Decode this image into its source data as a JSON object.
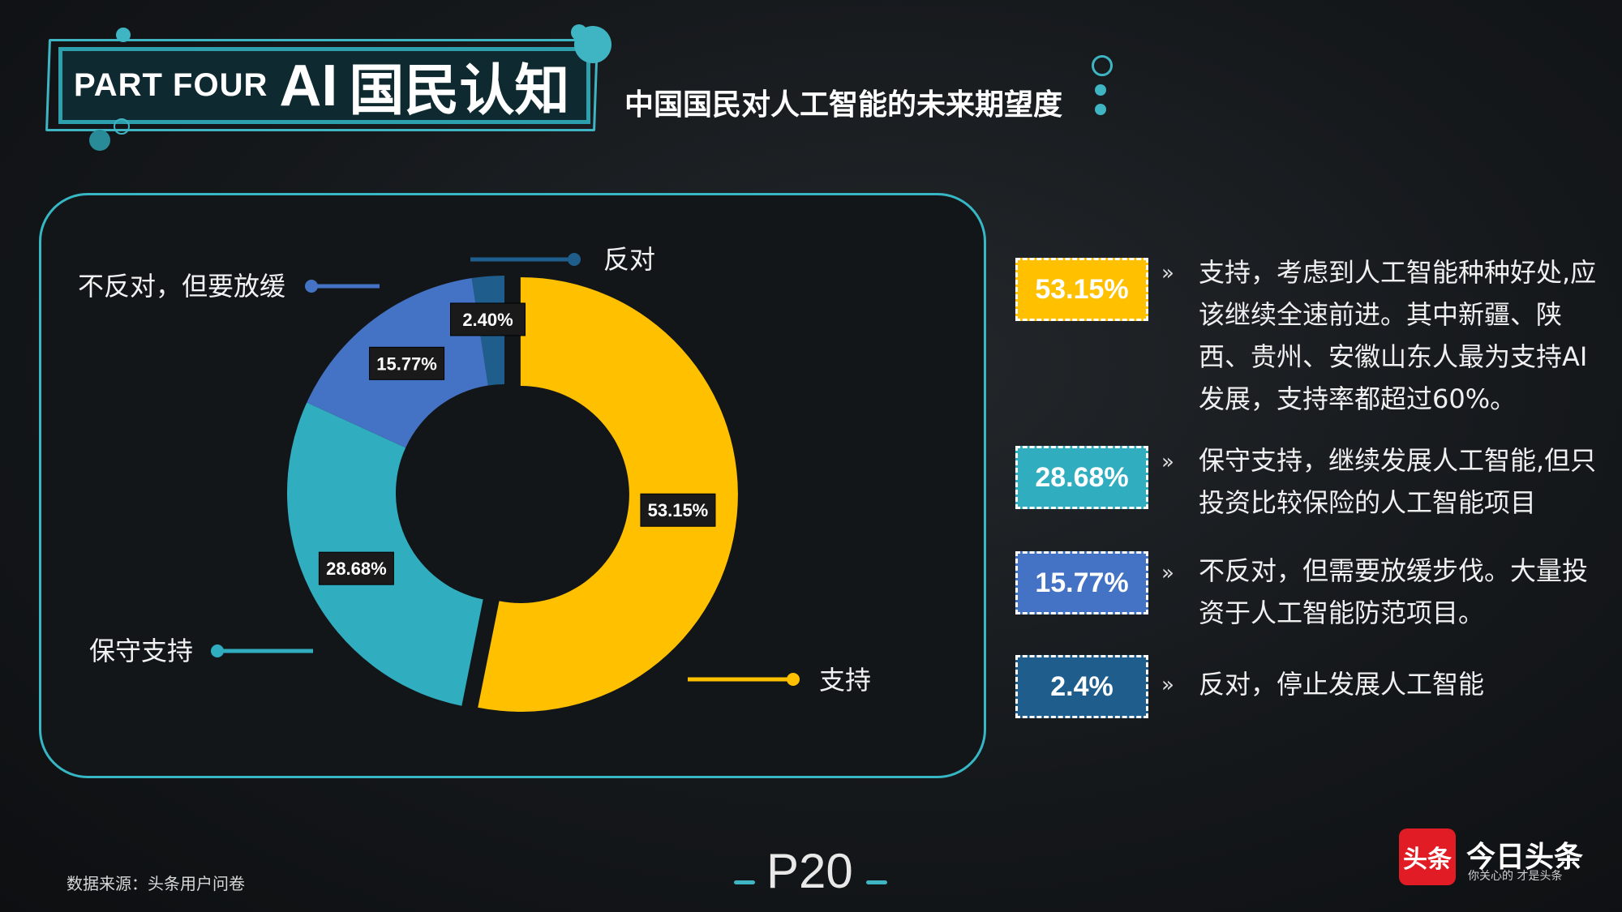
{
  "header": {
    "part_label": "PART FOUR",
    "ai_label": "AI",
    "cn_label": "国民认知",
    "subtitle": "中国国民对人工智能的未来期望度"
  },
  "chart_data": {
    "type": "pie",
    "variant": "donut",
    "categories": [
      "支持",
      "保守支持",
      "不反对，但要放缓",
      "反对"
    ],
    "values": [
      53.15,
      28.68,
      15.77,
      2.4
    ],
    "data_labels": [
      "53.15%",
      "28.68%",
      "15.77%",
      "2.40%"
    ],
    "colors": [
      "#ffc000",
      "#30aec0",
      "#4472c4",
      "#1f5e8c"
    ]
  },
  "legend": [
    {
      "pct": "53.15%",
      "text": "支持，考虑到人工智能种种好处,应该继续全速前进。其中新疆、陕西、贵州、安徽山东人最为支持AI发展，支持率都超过60%。",
      "color": "#ffc000"
    },
    {
      "pct": "28.68%",
      "text": "保守支持，继续发展人工智能,但只投资比较保险的人工智能项目",
      "color": "#30aec0"
    },
    {
      "pct": "15.77%",
      "text": "不反对，但需要放缓步伐。大量投资于人工智能防范项目。",
      "color": "#4472c4"
    },
    {
      "pct": "2.4%",
      "text": "反对，停止发展人工智能",
      "color": "#1f5e8c"
    }
  ],
  "arrow": "»",
  "footer": {
    "source": "数据来源：头条用户问卷",
    "page": "P20",
    "logo_mark": "头条",
    "logo_name": "今日头条",
    "logo_slogan": "你关心的 才是头条"
  }
}
